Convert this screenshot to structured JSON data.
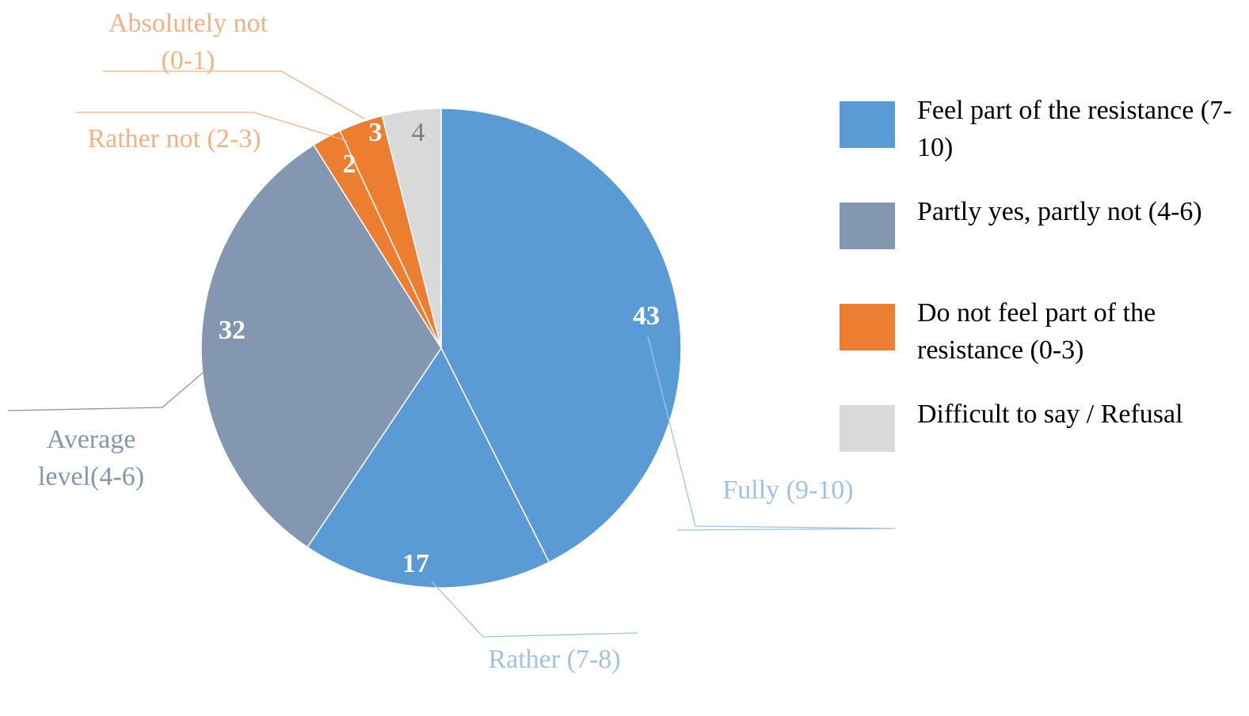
{
  "chart_data": {
    "type": "pie",
    "categories": [
      "Fully (9-10)",
      "Rather (7-8)",
      "Average level(4-6)",
      "Rather not (2-3)",
      "Absolutely not (0-1)",
      null
    ],
    "values": [
      43,
      17,
      32,
      2,
      3,
      4
    ],
    "colors": [
      "#5b9bd5",
      "#5b9bd5",
      "#8497b0",
      "#ed7d31",
      "#ed7d31",
      "#d9d9d9"
    ],
    "label_colors": [
      "#ffffff",
      "#ffffff",
      "#ffffff",
      "#ffffff",
      "#ffffff",
      "#7f7f7f"
    ],
    "category_colors": [
      "#9dc3e6",
      "#9dc3e6",
      "#8497b0",
      "#f4b183",
      "#f4b183",
      null
    ],
    "legend": [
      {
        "name": "Feel part of the resistance (7-10)",
        "color": "#5b9bd5"
      },
      {
        "name": "Partly yes, partly not (4-6)",
        "color": "#8497b0"
      },
      {
        "name": "Do not feel part of the resistance (0-3)",
        "color": "#ed7d31"
      },
      {
        "name": "Difficult to say / Refusal",
        "color": "#d9d9d9"
      }
    ]
  }
}
